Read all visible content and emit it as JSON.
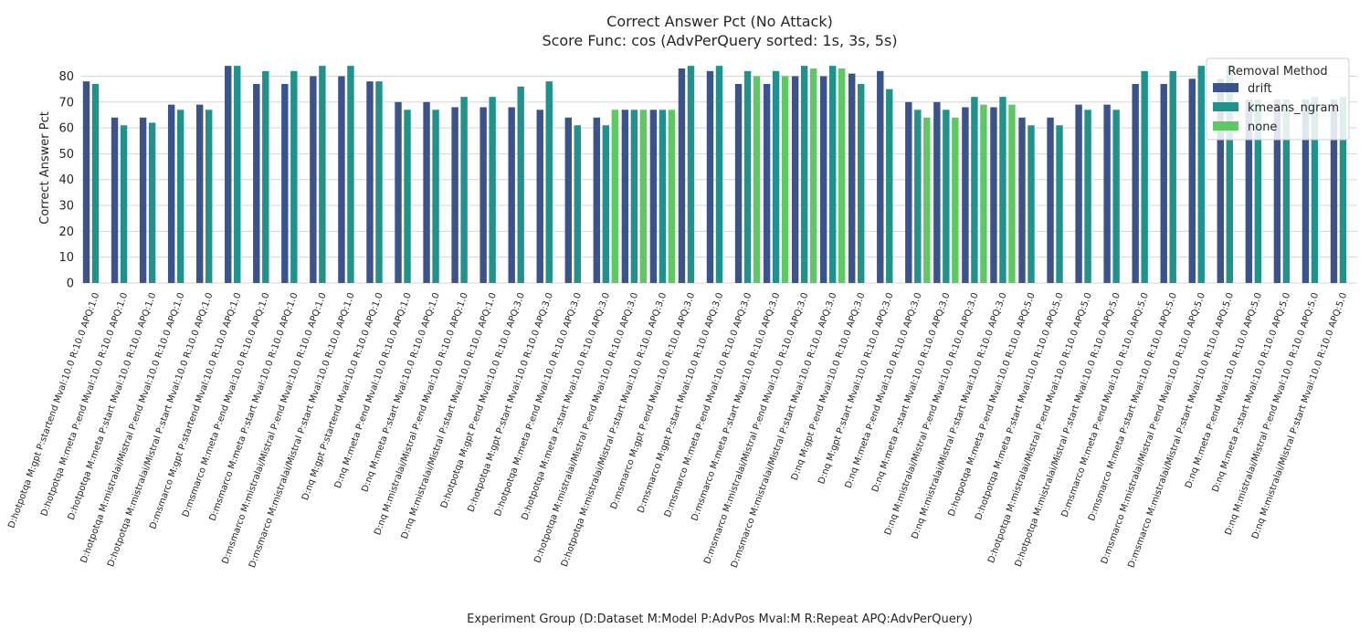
{
  "chart_data": {
    "type": "bar",
    "title": "Correct Answer Pct (No Attack)",
    "subtitle": "Score Func: cos (AdvPerQuery sorted: 1s, 3s, 5s)",
    "xlabel": "Experiment Group (D:Dataset M:Model P:AdvPos Mval:M R:Repeat APQ:AdvPerQuery)",
    "ylabel": "Correct Answer Pct",
    "ylim": [
      0,
      89
    ],
    "yticks": [
      "0",
      "10",
      "20",
      "30",
      "40",
      "50",
      "60",
      "70",
      "80"
    ],
    "grid": true,
    "legend": {
      "title": "Removal Method",
      "placement": "top-right"
    },
    "categories": [
      "D:hotpotqa M:gpt P:startend Mval:10.0 R:10.0 APQ:1.0",
      "D:hotpotqa M:meta P:end Mval:10.0 R:10.0 APQ:1.0",
      "D:hotpotqa M:meta P:start Mval:10.0 R:10.0 APQ:1.0",
      "D:hotpotqa M:mistralai/Mistral P:end Mval:10.0 R:10.0 APQ:1.0",
      "D:hotpotqa M:mistralai/Mistral P:start Mval:10.0 R:10.0 APQ:1.0",
      "D:msmarco M:gpt P:startend Mval:10.0 R:10.0 APQ:1.0",
      "D:msmarco M:meta P:end Mval:10.0 R:10.0 APQ:1.0",
      "D:msmarco M:meta P:start Mval:10.0 R:10.0 APQ:1.0",
      "D:msmarco M:mistralai/Mistral P:end Mval:10.0 R:10.0 APQ:1.0",
      "D:msmarco M:mistralai/Mistral P:start Mval:10.0 R:10.0 APQ:1.0",
      "D:nq M:gpt P:startend Mval:10.0 R:10.0 APQ:1.0",
      "D:nq M:meta P:end Mval:10.0 R:10.0 APQ:1.0",
      "D:nq M:meta P:start Mval:10.0 R:10.0 APQ:1.0",
      "D:nq M:mistralai/Mistral P:end Mval:10.0 R:10.0 APQ:1.0",
      "D:nq M:mistralai/Mistral P:start Mval:10.0 R:10.0 APQ:1.0",
      "D:hotpotqa M:gpt P:end Mval:10.0 R:10.0 APQ:3.0",
      "D:hotpotqa M:gpt P:start Mval:10.0 R:10.0 APQ:3.0",
      "D:hotpotqa M:meta P:end Mval:10.0 R:10.0 APQ:3.0",
      "D:hotpotqa M:meta P:start Mval:10.0 R:10.0 APQ:3.0",
      "D:hotpotqa M:mistralai/Mistral P:end Mval:10.0 R:10.0 APQ:3.0",
      "D:hotpotqa M:mistralai/Mistral P:start Mval:10.0 R:10.0 APQ:3.0",
      "D:msmarco M:gpt P:end Mval:10.0 R:10.0 APQ:3.0",
      "D:msmarco M:gpt P:start Mval:10.0 R:10.0 APQ:3.0",
      "D:msmarco M:meta P:end Mval:10.0 R:10.0 APQ:3.0",
      "D:msmarco M:meta P:start Mval:10.0 R:10.0 APQ:3.0",
      "D:msmarco M:mistralai/Mistral P:end Mval:10.0 R:10.0 APQ:3.0",
      "D:msmarco M:mistralai/Mistral P:start Mval:10.0 R:10.0 APQ:3.0",
      "D:nq M:gpt P:end Mval:10.0 R:10.0 APQ:3.0",
      "D:nq M:gpt P:start Mval:10.0 R:10.0 APQ:3.0",
      "D:nq M:meta P:end Mval:10.0 R:10.0 APQ:3.0",
      "D:nq M:meta P:start Mval:10.0 R:10.0 APQ:3.0",
      "D:nq M:mistralai/Mistral P:end Mval:10.0 R:10.0 APQ:3.0",
      "D:nq M:mistralai/Mistral P:start Mval:10.0 R:10.0 APQ:3.0",
      "D:hotpotqa M:meta P:end Mval:10.0 R:10.0 APQ:5.0",
      "D:hotpotqa M:meta P:start Mval:10.0 R:10.0 APQ:5.0",
      "D:hotpotqa M:mistralai/Mistral P:end Mval:10.0 R:10.0 APQ:5.0",
      "D:hotpotqa M:mistralai/Mistral P:start Mval:10.0 R:10.0 APQ:5.0",
      "D:msmarco M:meta P:end Mval:10.0 R:10.0 APQ:5.0",
      "D:msmarco M:meta P:start Mval:10.0 R:10.0 APQ:5.0",
      "D:msmarco M:mistralai/Mistral P:end Mval:10.0 R:10.0 APQ:5.0",
      "D:msmarco M:mistralai/Mistral P:start Mval:10.0 R:10.0 APQ:5.0",
      "D:nq M:meta P:end Mval:10.0 R:10.0 APQ:5.0",
      "D:nq M:meta P:start Mval:10.0 R:10.0 APQ:5.0",
      "D:nq M:mistralai/Mistral P:end Mval:10.0 R:10.0 APQ:5.0",
      "D:nq M:mistralai/Mistral P:start Mval:10.0 R:10.0 APQ:5.0"
    ],
    "series": [
      {
        "name": "drift",
        "color": "#3b528b",
        "values": [
          78,
          64,
          64,
          69,
          69,
          84,
          77,
          77,
          80,
          80,
          78,
          70,
          70,
          68,
          68,
          68,
          67,
          64,
          64,
          67,
          67,
          83,
          82,
          77,
          77,
          80,
          80,
          81,
          82,
          70,
          70,
          68,
          68,
          64,
          64,
          69,
          69,
          77,
          77,
          79,
          79,
          71,
          71,
          71,
          71
        ]
      },
      {
        "name": "kmeans_ngram",
        "color": "#21918c",
        "values": [
          77,
          61,
          62,
          67,
          67,
          84,
          82,
          82,
          84,
          84,
          78,
          67,
          67,
          72,
          72,
          76,
          78,
          61,
          61,
          67,
          67,
          84,
          84,
          82,
          82,
          84,
          84,
          77,
          75,
          67,
          67,
          72,
          72,
          61,
          61,
          67,
          67,
          82,
          82,
          84,
          84,
          71,
          71,
          72,
          72
        ]
      },
      {
        "name": "none",
        "color": "#5ec962",
        "values": [
          null,
          null,
          null,
          null,
          null,
          null,
          null,
          null,
          null,
          null,
          null,
          null,
          null,
          null,
          null,
          null,
          null,
          null,
          67,
          67,
          67,
          null,
          null,
          80,
          80,
          83,
          83,
          null,
          null,
          64,
          64,
          69,
          69,
          null,
          null,
          null,
          null,
          null,
          null,
          null,
          null,
          null,
          null,
          null,
          null
        ]
      }
    ]
  }
}
